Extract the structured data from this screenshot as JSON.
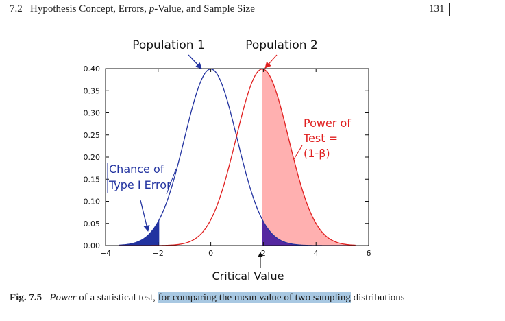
{
  "header": {
    "section_number": "7.2",
    "title_before": "Hypothesis Concept, Errors,",
    "title_italic": "p",
    "title_after": "-Value, and Sample Size",
    "page_number": "131"
  },
  "figure": {
    "labels": {
      "population_1": "Population 1",
      "population_2": "Population 2",
      "type_one_line1": "Chance of",
      "type_one_line2": "Type I Error",
      "power_line1": "Power of",
      "power_line2": "Test =",
      "power_line3": "(1-β)",
      "critical_value": "Critical Value"
    },
    "colors": {
      "population_1": "#2233a0",
      "population_2": "#e02020",
      "type_one_fill": "#2233a0",
      "power_fill": "#ffb0b0",
      "overlap_fill": "#5528a0"
    }
  },
  "chart_data": {
    "type": "line",
    "x_ticks": [
      -4,
      -2,
      0,
      2,
      4,
      6
    ],
    "x_tick_labels": [
      "−4",
      "−2",
      "0",
      "2",
      "4",
      "6"
    ],
    "y_ticks": [
      0.0,
      0.05,
      0.1,
      0.15,
      0.2,
      0.25,
      0.3,
      0.35,
      0.4
    ],
    "y_tick_labels": [
      "0.00",
      "0.05",
      "0.10",
      "0.15",
      "0.20",
      "0.25",
      "0.30",
      "0.35",
      "0.40"
    ],
    "xlim": [
      -4,
      6
    ],
    "ylim": [
      0,
      0.4
    ],
    "series": [
      {
        "name": "Population 1",
        "distribution": "normal",
        "mean": 0,
        "sd": 1
      },
      {
        "name": "Population 2",
        "distribution": "normal",
        "mean": 1.96,
        "sd": 1
      }
    ],
    "critical_value": 1.96,
    "lower_shaded_bound": -1.96,
    "grid": false
  },
  "caption": {
    "label": "Fig. 7.5",
    "italic_word": "Power",
    "text1": "of a statistical test,",
    "highlighted": "for comparing the mean value of two sampling",
    "text2": "distributions"
  }
}
